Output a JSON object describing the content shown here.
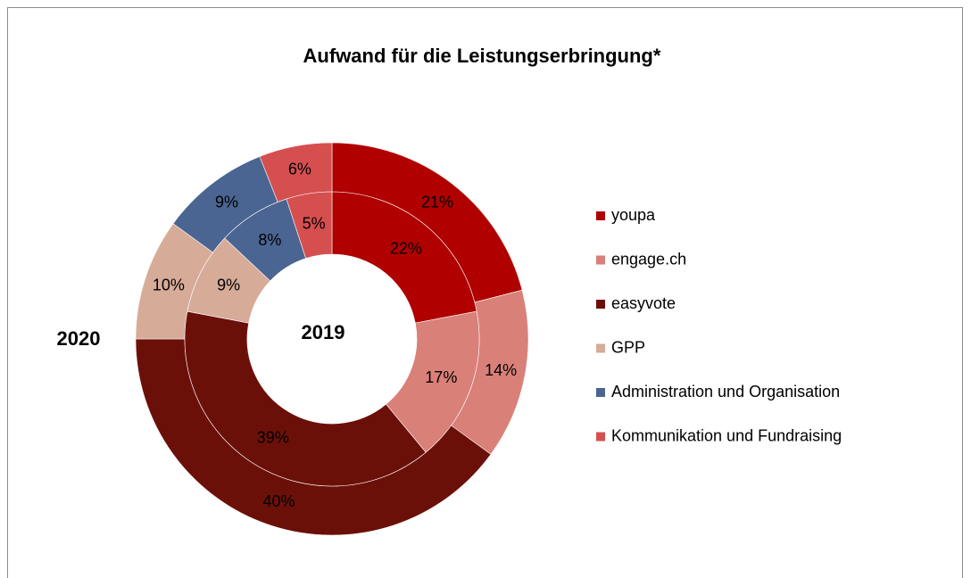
{
  "chart_data": {
    "type": "donut",
    "title": "Aufwand für die Leistungserbringung*",
    "categories": [
      "youpa",
      "engage.ch",
      "easyvote",
      "GPP",
      "Administration und Organisation",
      "Kommunikation und Fundraising"
    ],
    "colors": [
      "#b00000",
      "#d98079",
      "#6b1008",
      "#d6ab98",
      "#4a6591",
      "#d54f4f"
    ],
    "series": [
      {
        "name": "2020",
        "values": [
          21,
          14,
          40,
          10,
          9,
          6
        ],
        "value_labels": [
          "21%",
          "14%",
          "40%",
          "10%",
          "9%",
          "6%"
        ]
      },
      {
        "name": "2019",
        "values": [
          22,
          17,
          39,
          9,
          8,
          5
        ],
        "value_labels": [
          "22%",
          "17%",
          "39%",
          "9%",
          "8%",
          "5%"
        ]
      }
    ],
    "legend": "right"
  }
}
